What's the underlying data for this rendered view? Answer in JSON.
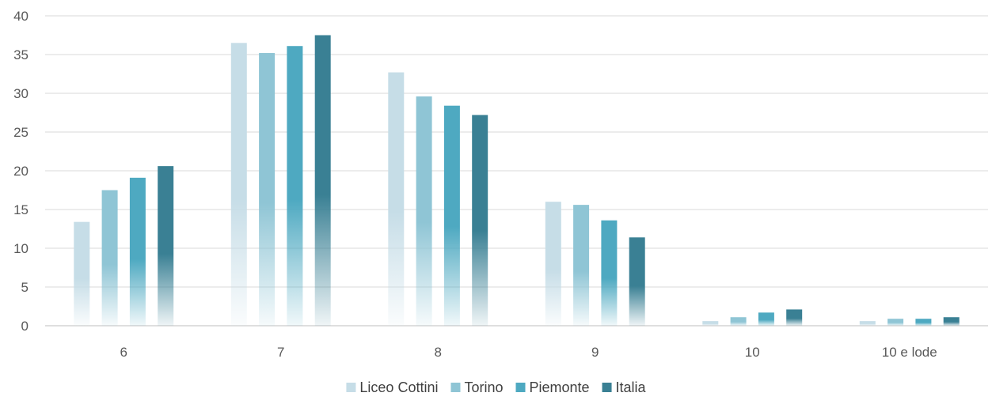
{
  "chart_data": {
    "type": "bar",
    "categories": [
      "6",
      "7",
      "8",
      "9",
      "10",
      "10 e lode"
    ],
    "series": [
      {
        "name": "Liceo Cottini",
        "color": "#c6dde7",
        "values": [
          13.4,
          36.5,
          32.7,
          16.0,
          0.6,
          0.6
        ]
      },
      {
        "name": "Torino",
        "color": "#8fc5d5",
        "values": [
          17.5,
          35.2,
          29.6,
          15.6,
          1.1,
          0.9
        ]
      },
      {
        "name": "Piemonte",
        "color": "#4ea9c1",
        "values": [
          19.1,
          36.1,
          28.4,
          13.6,
          1.7,
          0.9
        ]
      },
      {
        "name": "Italia",
        "color": "#3a8094",
        "values": [
          20.6,
          37.5,
          27.2,
          11.4,
          2.1,
          1.1
        ]
      }
    ],
    "title": "",
    "xlabel": "",
    "ylabel": "",
    "ylim": [
      0,
      40
    ],
    "yticks": [
      "0",
      "5",
      "10",
      "15",
      "20",
      "25",
      "30",
      "35",
      "40"
    ],
    "grid": true,
    "legend_position": "bottom"
  }
}
